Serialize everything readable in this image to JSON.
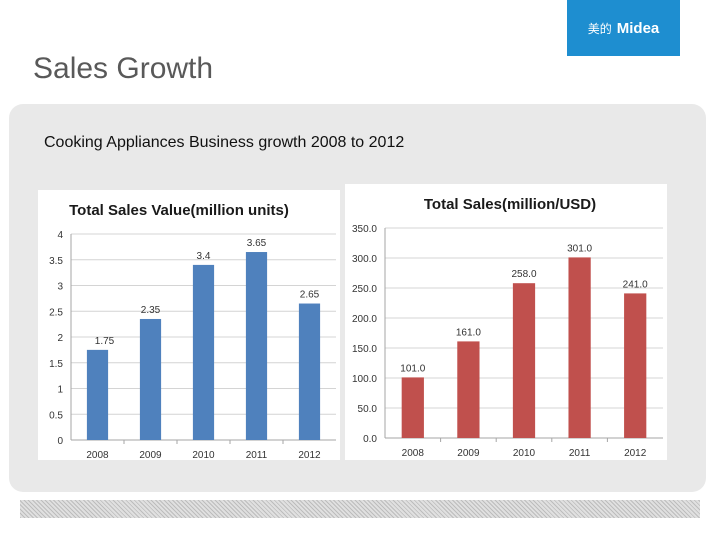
{
  "header": {
    "title": "Sales Growth",
    "logo": {
      "cn": "美的",
      "en": "Midea",
      "color": "#1e8ed0"
    }
  },
  "panel": {
    "subtitle": "Cooking Appliances Business growth 2008 to 2012"
  },
  "chart_data": [
    {
      "type": "bar",
      "title": "Total Sales Value(million units)",
      "categories": [
        "2008",
        "2009",
        "2010",
        "2011",
        "2012"
      ],
      "values": [
        1.75,
        2.35,
        3.4,
        3.65,
        2.65
      ],
      "value_labels": [
        "1.75",
        "2.35",
        "3.4",
        "3.65",
        "2.65"
      ],
      "ylim": [
        0,
        4
      ],
      "yticks": [
        "0",
        "0.5",
        "1",
        "1.5",
        "2",
        "2.5",
        "3",
        "3.5",
        "4"
      ],
      "grid": true,
      "color": "#4f81bd"
    },
    {
      "type": "bar",
      "title": "Total Sales(million/USD)",
      "categories": [
        "2008",
        "2009",
        "2010",
        "2011",
        "2012"
      ],
      "values": [
        101.0,
        161.0,
        258.0,
        301.0,
        241.0
      ],
      "value_labels": [
        "101.0",
        "161.0",
        "258.0",
        "301.0",
        "241.0"
      ],
      "ylim": [
        0,
        350
      ],
      "yticks": [
        "0.0",
        "50.0",
        "100.0",
        "150.0",
        "200.0",
        "250.0",
        "300.0",
        "350.0"
      ],
      "grid": true,
      "color": "#c0504d"
    }
  ]
}
